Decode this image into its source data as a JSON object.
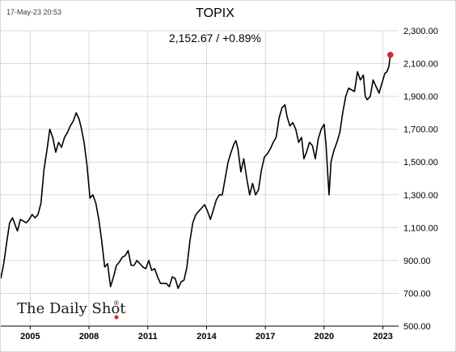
{
  "header": {
    "timestamp": "17-May-23 20:53",
    "title": "TOPIX",
    "subtitle": "2,152.67  /  +0.89%"
  },
  "branding": {
    "text": "The Daily Shot",
    "mark": "®"
  },
  "colors": {
    "line": "#000000",
    "marker": "#d62728",
    "grid": "#d9d9d9"
  },
  "chart_data": {
    "type": "line",
    "title": "TOPIX",
    "subtitle": "2,152.67  /  +0.89%",
    "xlim": [
      2003.5,
      2023.8
    ],
    "ylim": [
      500,
      2300
    ],
    "grid": true,
    "x_ticks": [
      {
        "value": 2005,
        "label": "2005"
      },
      {
        "value": 2008,
        "label": "2008"
      },
      {
        "value": 2011,
        "label": "2011"
      },
      {
        "value": 2014,
        "label": "2014"
      },
      {
        "value": 2017,
        "label": "2017"
      },
      {
        "value": 2020,
        "label": "2020"
      },
      {
        "value": 2023,
        "label": "2023"
      }
    ],
    "y_ticks": [
      {
        "value": 2300,
        "label": "2,300.00"
      },
      {
        "value": 2100,
        "label": "2,100.00"
      },
      {
        "value": 1900,
        "label": "1,900.00"
      },
      {
        "value": 1700,
        "label": "1,700.00"
      },
      {
        "value": 1500,
        "label": "1,500.00"
      },
      {
        "value": 1300,
        "label": "1,300.00"
      },
      {
        "value": 1100,
        "label": "1,100.00"
      },
      {
        "value": 900,
        "label": "900.00"
      },
      {
        "value": 700,
        "label": "700.00"
      },
      {
        "value": 500,
        "label": "500.00"
      }
    ],
    "series": [
      {
        "x": [
          2003.5,
          2003.65,
          2003.8,
          2003.95,
          2004.1,
          2004.25,
          2004.35,
          2004.5,
          2004.65,
          2004.8,
          2004.95,
          2005.1,
          2005.25,
          2005.4,
          2005.55,
          2005.7,
          2005.85,
          2006.0,
          2006.15,
          2006.3,
          2006.45,
          2006.6,
          2006.75,
          2006.9,
          2007.05,
          2007.2,
          2007.35,
          2007.5,
          2007.6,
          2007.75,
          2007.9,
          2008.05,
          2008.2,
          2008.35,
          2008.5,
          2008.65,
          2008.8,
          2008.95,
          2009.1,
          2009.25,
          2009.4,
          2009.55,
          2009.7,
          2009.85,
          2010.0,
          2010.15,
          2010.3,
          2010.45,
          2010.6,
          2010.75,
          2010.9,
          2011.05,
          2011.2,
          2011.35,
          2011.5,
          2011.65,
          2011.8,
          2011.95,
          2012.1,
          2012.25,
          2012.4,
          2012.55,
          2012.7,
          2012.85,
          2013.0,
          2013.15,
          2013.3,
          2013.45,
          2013.6,
          2013.75,
          2013.9,
          2014.05,
          2014.2,
          2014.35,
          2014.5,
          2014.65,
          2014.8,
          2014.95,
          2015.1,
          2015.25,
          2015.4,
          2015.5,
          2015.6,
          2015.75,
          2015.9,
          2016.05,
          2016.2,
          2016.35,
          2016.5,
          2016.65,
          2016.8,
          2016.95,
          2017.1,
          2017.25,
          2017.4,
          2017.55,
          2017.7,
          2017.85,
          2018.0,
          2018.1,
          2018.25,
          2018.4,
          2018.55,
          2018.7,
          2018.85,
          2018.97,
          2019.1,
          2019.25,
          2019.4,
          2019.55,
          2019.7,
          2019.85,
          2020.0,
          2020.1,
          2020.2,
          2020.25,
          2020.35,
          2020.5,
          2020.65,
          2020.8,
          2020.95,
          2021.1,
          2021.25,
          2021.4,
          2021.55,
          2021.7,
          2021.85,
          2022.0,
          2022.1,
          2022.2,
          2022.35,
          2022.5,
          2022.65,
          2022.8,
          2022.95,
          2023.1,
          2023.2,
          2023.3,
          2023.38
        ],
        "y": [
          790,
          880,
          1010,
          1130,
          1160,
          1110,
          1080,
          1150,
          1140,
          1130,
          1150,
          1180,
          1160,
          1180,
          1250,
          1450,
          1570,
          1700,
          1650,
          1560,
          1620,
          1590,
          1650,
          1680,
          1720,
          1750,
          1800,
          1760,
          1710,
          1620,
          1480,
          1280,
          1300,
          1250,
          1150,
          1020,
          860,
          880,
          740,
          800,
          870,
          890,
          920,
          930,
          960,
          870,
          870,
          900,
          880,
          860,
          850,
          900,
          840,
          850,
          800,
          760,
          760,
          760,
          740,
          800,
          790,
          730,
          770,
          780,
          860,
          1020,
          1130,
          1180,
          1200,
          1220,
          1240,
          1200,
          1150,
          1210,
          1270,
          1300,
          1300,
          1400,
          1500,
          1560,
          1610,
          1630,
          1580,
          1440,
          1520,
          1400,
          1300,
          1370,
          1300,
          1330,
          1450,
          1530,
          1550,
          1580,
          1620,
          1650,
          1770,
          1830,
          1850,
          1780,
          1720,
          1740,
          1700,
          1620,
          1650,
          1520,
          1560,
          1620,
          1600,
          1520,
          1640,
          1700,
          1730,
          1600,
          1400,
          1300,
          1500,
          1570,
          1620,
          1680,
          1800,
          1900,
          1950,
          1940,
          1930,
          2050,
          2000,
          2030,
          1900,
          1880,
          1900,
          2000,
          1960,
          1920,
          1980,
          2040,
          2050,
          2080,
          2153
        ],
        "endpoint": {
          "x": 2023.38,
          "y": 2153
        }
      }
    ]
  }
}
